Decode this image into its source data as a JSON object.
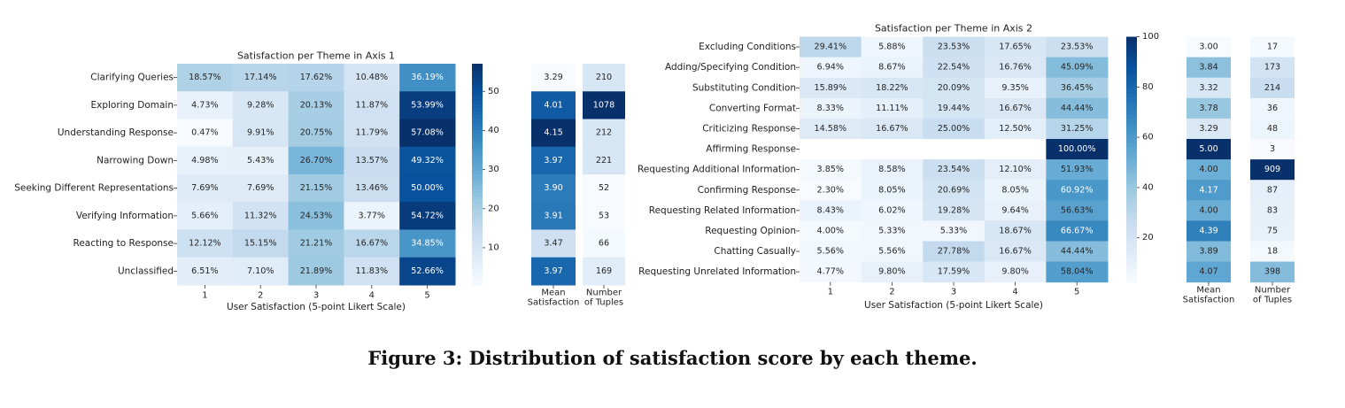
{
  "figure": {
    "caption": "Figure 3: Distribution of satisfaction score by each theme."
  },
  "chart_data": [
    {
      "type": "heatmap",
      "title": "Satisfaction per Theme in Axis 1",
      "xlabel": "User Satisfaction (5-point Likert Scale)",
      "x": [
        "1",
        "2",
        "3",
        "4",
        "5"
      ],
      "rows": [
        "Clarifying Queries",
        "Exploring Domain",
        "Understanding Response",
        "Narrowing Down",
        "Seeking Different Representations",
        "Verifying Information",
        "Reacting to Response",
        "Unclassified"
      ],
      "values": [
        [
          18.57,
          17.14,
          17.62,
          10.48,
          36.19
        ],
        [
          4.73,
          9.28,
          20.13,
          11.87,
          53.99
        ],
        [
          0.47,
          9.91,
          20.75,
          11.79,
          57.08
        ],
        [
          4.98,
          5.43,
          26.7,
          13.57,
          49.32
        ],
        [
          7.69,
          7.69,
          21.15,
          13.46,
          50.0
        ],
        [
          5.66,
          11.32,
          24.53,
          3.77,
          54.72
        ],
        [
          12.12,
          15.15,
          21.21,
          16.67,
          34.85
        ],
        [
          6.51,
          7.1,
          21.89,
          11.83,
          52.66
        ]
      ],
      "labels": [
        [
          "18.57%",
          "17.14%",
          "17.62%",
          "10.48%",
          "36.19%"
        ],
        [
          "4.73%",
          "9.28%",
          "20.13%",
          "11.87%",
          "53.99%"
        ],
        [
          "0.47%",
          "9.91%",
          "20.75%",
          "11.79%",
          "57.08%"
        ],
        [
          "4.98%",
          "5.43%",
          "26.70%",
          "13.57%",
          "49.32%"
        ],
        [
          "7.69%",
          "7.69%",
          "21.15%",
          "13.46%",
          "50.00%"
        ],
        [
          "5.66%",
          "11.32%",
          "24.53%",
          "3.77%",
          "54.72%"
        ],
        [
          "12.12%",
          "15.15%",
          "21.21%",
          "16.67%",
          "34.85%"
        ],
        [
          "6.51%",
          "7.10%",
          "21.89%",
          "11.83%",
          "52.66%"
        ]
      ],
      "colorbar": {
        "ticks": [
          "10",
          "20",
          "30",
          "40",
          "50"
        ],
        "tick_values": [
          10,
          20,
          30,
          40,
          50
        ],
        "vmin": 0.47,
        "vmax": 57.08
      },
      "mean": {
        "header": [
          "Mean",
          "Satisfaction"
        ],
        "values": [
          3.29,
          4.01,
          4.15,
          3.97,
          3.9,
          3.91,
          3.47,
          3.97
        ],
        "labels": [
          "3.29",
          "4.01",
          "4.15",
          "3.97",
          "3.90",
          "3.91",
          "3.47",
          "3.97"
        ]
      },
      "count": {
        "header": [
          "Number",
          "of Tuples"
        ],
        "values": [
          210,
          1078,
          212,
          221,
          52,
          53,
          66,
          169
        ],
        "labels": [
          "210",
          "1078",
          "212",
          "221",
          "52",
          "53",
          "66",
          "169"
        ]
      },
      "colormap": "Blues"
    },
    {
      "type": "heatmap",
      "title": "Satisfaction per Theme in Axis 2",
      "xlabel": "User Satisfaction (5-point Likert Scale)",
      "x": [
        "1",
        "2",
        "3",
        "4",
        "5"
      ],
      "rows": [
        "Excluding Conditions",
        "Adding/Specifying Condition",
        "Substituting Condition",
        "Converting Format",
        "Criticizing Response",
        "Affirming Response",
        "Requesting Additional Information",
        "Confirming Response",
        "Requesting Related Information",
        "Requesting Opinion",
        "Chatting Casually",
        "Requesting Unrelated Information"
      ],
      "values": [
        [
          29.41,
          5.88,
          23.53,
          17.65,
          23.53
        ],
        [
          6.94,
          8.67,
          22.54,
          16.76,
          45.09
        ],
        [
          15.89,
          18.22,
          20.09,
          9.35,
          36.45
        ],
        [
          8.33,
          11.11,
          19.44,
          16.67,
          44.44
        ],
        [
          14.58,
          16.67,
          25.0,
          12.5,
          31.25
        ],
        [
          null,
          null,
          null,
          null,
          100.0
        ],
        [
          3.85,
          8.58,
          23.54,
          12.1,
          51.93
        ],
        [
          2.3,
          8.05,
          20.69,
          8.05,
          60.92
        ],
        [
          8.43,
          6.02,
          19.28,
          9.64,
          56.63
        ],
        [
          4.0,
          5.33,
          5.33,
          18.67,
          66.67
        ],
        [
          5.56,
          5.56,
          27.78,
          16.67,
          44.44
        ],
        [
          4.77,
          9.8,
          17.59,
          9.8,
          58.04
        ]
      ],
      "labels": [
        [
          "29.41%",
          "5.88%",
          "23.53%",
          "17.65%",
          "23.53%"
        ],
        [
          "6.94%",
          "8.67%",
          "22.54%",
          "16.76%",
          "45.09%"
        ],
        [
          "15.89%",
          "18.22%",
          "20.09%",
          "9.35%",
          "36.45%"
        ],
        [
          "8.33%",
          "11.11%",
          "19.44%",
          "16.67%",
          "44.44%"
        ],
        [
          "14.58%",
          "16.67%",
          "25.00%",
          "12.50%",
          "31.25%"
        ],
        [
          "",
          "",
          "",
          "",
          "100.00%"
        ],
        [
          "3.85%",
          "8.58%",
          "23.54%",
          "12.10%",
          "51.93%"
        ],
        [
          "2.30%",
          "8.05%",
          "20.69%",
          "8.05%",
          "60.92%"
        ],
        [
          "8.43%",
          "6.02%",
          "19.28%",
          "9.64%",
          "56.63%"
        ],
        [
          "4.00%",
          "5.33%",
          "5.33%",
          "18.67%",
          "66.67%"
        ],
        [
          "5.56%",
          "5.56%",
          "27.78%",
          "16.67%",
          "44.44%"
        ],
        [
          "4.77%",
          "9.80%",
          "17.59%",
          "9.80%",
          "58.04%"
        ]
      ],
      "colorbar": {
        "ticks": [
          "20",
          "40",
          "60",
          "80",
          "100"
        ],
        "tick_values": [
          20,
          40,
          60,
          80,
          100
        ],
        "vmin": 2.3,
        "vmax": 100
      },
      "mean": {
        "header": [
          "Mean",
          "Satisfaction"
        ],
        "values": [
          3.0,
          3.84,
          3.32,
          3.78,
          3.29,
          5.0,
          4.0,
          4.17,
          4.0,
          4.39,
          3.89,
          4.07
        ],
        "labels": [
          "3.00",
          "3.84",
          "3.32",
          "3.78",
          "3.29",
          "5.00",
          "4.00",
          "4.17",
          "4.00",
          "4.39",
          "3.89",
          "4.07"
        ]
      },
      "count": {
        "header": [
          "Number",
          "of Tuples"
        ],
        "values": [
          17,
          173,
          214,
          36,
          48,
          3,
          909,
          87,
          83,
          75,
          18,
          398
        ],
        "labels": [
          "17",
          "173",
          "214",
          "36",
          "48",
          "3",
          "909",
          "87",
          "83",
          "75",
          "18",
          "398"
        ]
      },
      "colormap": "Blues"
    }
  ]
}
